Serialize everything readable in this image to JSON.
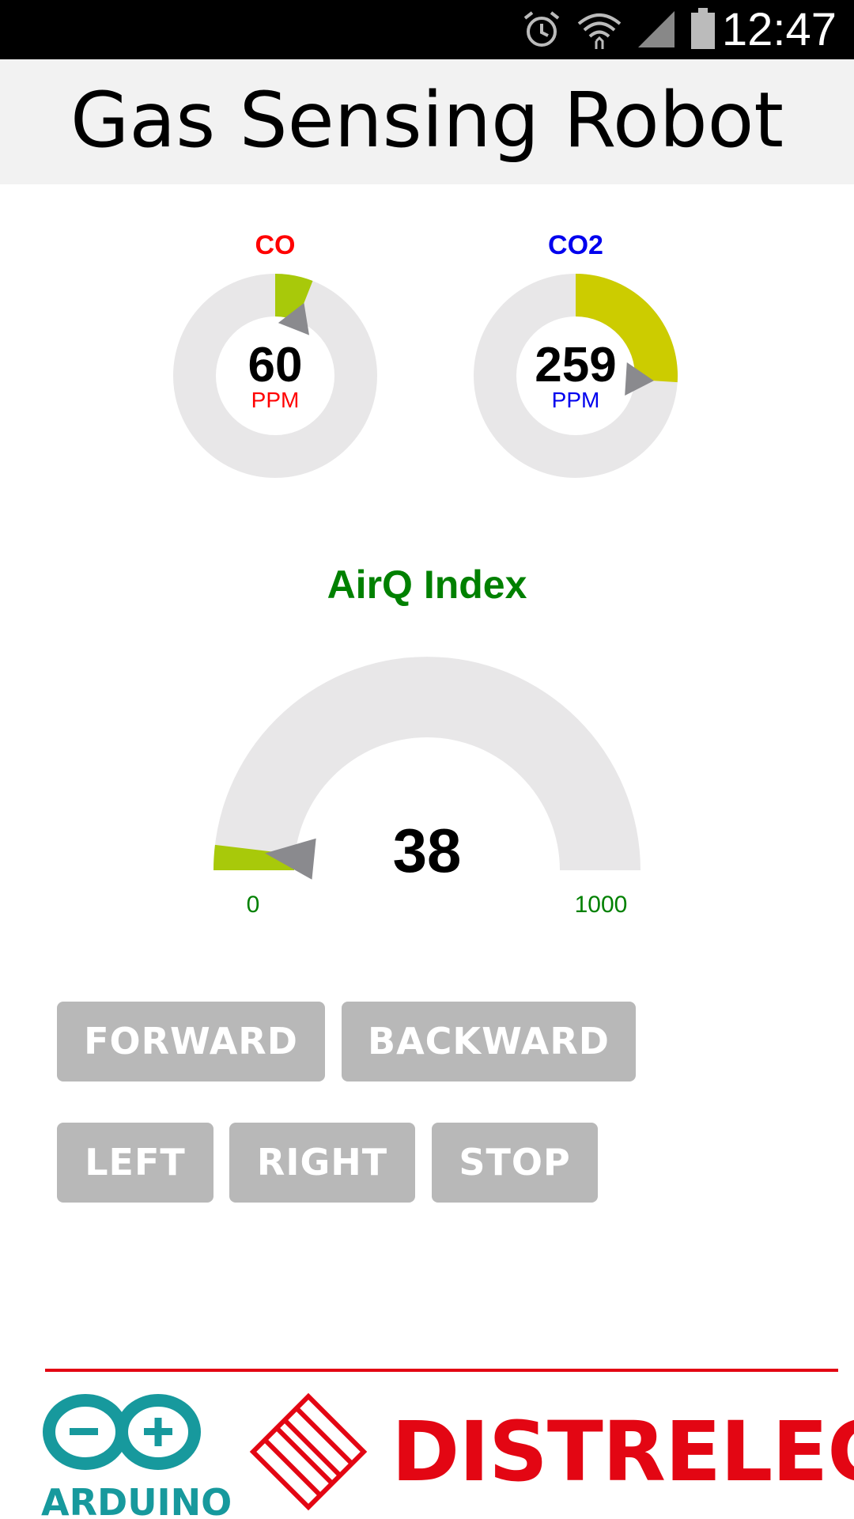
{
  "status_bar": {
    "time": "12:47",
    "icons": [
      "alarm-icon",
      "wifi-icon",
      "signal-icon",
      "battery-icon"
    ]
  },
  "header": {
    "title": "Gas Sensing Robot"
  },
  "gauges": {
    "co": {
      "label": "CO",
      "value": "60",
      "unit": "PPM",
      "color": "#ff0000",
      "fill_color": "#a8c90a",
      "level_fraction": 0.06
    },
    "co2": {
      "label": "CO2",
      "value": "259",
      "unit": "PPM",
      "color": "#0000ee",
      "fill_color": "#cccc00",
      "level_fraction": 0.26
    }
  },
  "airq": {
    "title": "AirQ Index",
    "value": "38",
    "min": "0",
    "max": "1000",
    "level_fraction": 0.038,
    "fill_color": "#a8c90a"
  },
  "controls": {
    "forward": "FORWARD",
    "backward": "BACKWARD",
    "left": "LEFT",
    "right": "RIGHT",
    "stop": "STOP"
  },
  "footer": {
    "arduino": "ARDUINO",
    "distrelec": "DISTRELEC",
    "arduino_color": "#17999d",
    "distrelec_color": "#e30613"
  }
}
